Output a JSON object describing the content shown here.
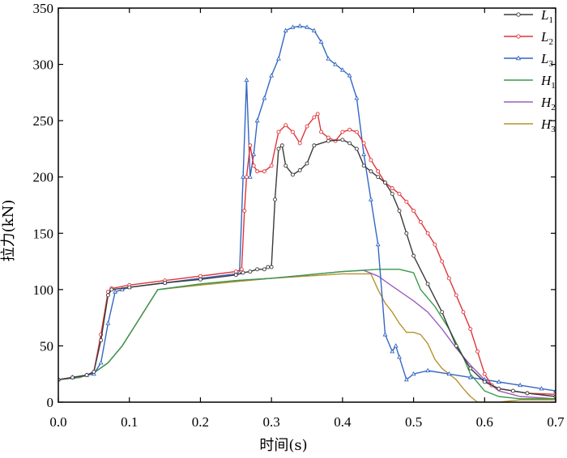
{
  "chart_data": {
    "type": "line",
    "title": "",
    "xlabel": "时间(s)",
    "ylabel": "拉力(kN)",
    "xlim": [
      0.0,
      0.7
    ],
    "ylim": [
      0,
      350
    ],
    "xticks": [
      "0.0",
      "0.1",
      "0.2",
      "0.3",
      "0.4",
      "0.5",
      "0.6",
      "0.7"
    ],
    "yticks": [
      "0",
      "50",
      "100",
      "150",
      "200",
      "250",
      "300",
      "350"
    ],
    "grid": false,
    "legend_position": "top-right",
    "series": [
      {
        "name": "L",
        "sub": "1",
        "color": "#3a3a3a",
        "marker": "circle",
        "points": [
          [
            0.0,
            20
          ],
          [
            0.02,
            22
          ],
          [
            0.04,
            24
          ],
          [
            0.05,
            27
          ],
          [
            0.06,
            55
          ],
          [
            0.07,
            95
          ],
          [
            0.075,
            100
          ],
          [
            0.1,
            102
          ],
          [
            0.15,
            106
          ],
          [
            0.2,
            109
          ],
          [
            0.25,
            113
          ],
          [
            0.26,
            115
          ],
          [
            0.27,
            116
          ],
          [
            0.28,
            118
          ],
          [
            0.29,
            118
          ],
          [
            0.295,
            120
          ],
          [
            0.3,
            120
          ],
          [
            0.305,
            180
          ],
          [
            0.31,
            225
          ],
          [
            0.315,
            228
          ],
          [
            0.32,
            210
          ],
          [
            0.33,
            202
          ],
          [
            0.34,
            206
          ],
          [
            0.35,
            212
          ],
          [
            0.36,
            228
          ],
          [
            0.38,
            232
          ],
          [
            0.4,
            233
          ],
          [
            0.41,
            230
          ],
          [
            0.42,
            225
          ],
          [
            0.43,
            210
          ],
          [
            0.44,
            205
          ],
          [
            0.45,
            200
          ],
          [
            0.46,
            195
          ],
          [
            0.47,
            185
          ],
          [
            0.48,
            170
          ],
          [
            0.49,
            150
          ],
          [
            0.5,
            130
          ],
          [
            0.52,
            105
          ],
          [
            0.54,
            80
          ],
          [
            0.56,
            50
          ],
          [
            0.58,
            30
          ],
          [
            0.6,
            18
          ],
          [
            0.62,
            12
          ],
          [
            0.64,
            10
          ],
          [
            0.66,
            8
          ],
          [
            0.7,
            5
          ]
        ]
      },
      {
        "name": "L",
        "sub": "2",
        "color": "#e0343a",
        "marker": "circle",
        "points": [
          [
            0.0,
            20
          ],
          [
            0.02,
            22
          ],
          [
            0.04,
            24
          ],
          [
            0.05,
            27
          ],
          [
            0.06,
            60
          ],
          [
            0.07,
            98
          ],
          [
            0.075,
            101
          ],
          [
            0.1,
            104
          ],
          [
            0.15,
            108
          ],
          [
            0.2,
            112
          ],
          [
            0.25,
            116
          ],
          [
            0.258,
            118
          ],
          [
            0.262,
            170
          ],
          [
            0.265,
            200
          ],
          [
            0.27,
            228
          ],
          [
            0.275,
            210
          ],
          [
            0.28,
            205
          ],
          [
            0.29,
            205
          ],
          [
            0.3,
            210
          ],
          [
            0.31,
            240
          ],
          [
            0.32,
            246
          ],
          [
            0.33,
            240
          ],
          [
            0.34,
            230
          ],
          [
            0.35,
            245
          ],
          [
            0.36,
            253
          ],
          [
            0.365,
            256
          ],
          [
            0.37,
            240
          ],
          [
            0.38,
            235
          ],
          [
            0.39,
            232
          ],
          [
            0.4,
            240
          ],
          [
            0.41,
            242
          ],
          [
            0.42,
            240
          ],
          [
            0.43,
            230
          ],
          [
            0.44,
            215
          ],
          [
            0.45,
            205
          ],
          [
            0.46,
            195
          ],
          [
            0.47,
            190
          ],
          [
            0.48,
            185
          ],
          [
            0.49,
            178
          ],
          [
            0.5,
            170
          ],
          [
            0.51,
            160
          ],
          [
            0.52,
            150
          ],
          [
            0.53,
            140
          ],
          [
            0.54,
            125
          ],
          [
            0.55,
            110
          ],
          [
            0.56,
            95
          ],
          [
            0.57,
            80
          ],
          [
            0.58,
            65
          ],
          [
            0.59,
            45
          ],
          [
            0.6,
            25
          ],
          [
            0.61,
            15
          ],
          [
            0.62,
            12
          ],
          [
            0.64,
            10
          ],
          [
            0.66,
            8
          ],
          [
            0.7,
            7
          ]
        ]
      },
      {
        "name": "L",
        "sub": "3",
        "color": "#3467c3",
        "marker": "triangle",
        "points": [
          [
            0.0,
            20
          ],
          [
            0.02,
            22
          ],
          [
            0.04,
            24
          ],
          [
            0.05,
            25
          ],
          [
            0.06,
            35
          ],
          [
            0.07,
            70
          ],
          [
            0.08,
            98
          ],
          [
            0.09,
            100
          ],
          [
            0.1,
            102
          ],
          [
            0.15,
            106
          ],
          [
            0.2,
            110
          ],
          [
            0.25,
            114
          ],
          [
            0.255,
            115
          ],
          [
            0.26,
            200
          ],
          [
            0.265,
            286
          ],
          [
            0.27,
            200
          ],
          [
            0.275,
            220
          ],
          [
            0.28,
            250
          ],
          [
            0.29,
            270
          ],
          [
            0.3,
            290
          ],
          [
            0.31,
            305
          ],
          [
            0.32,
            330
          ],
          [
            0.33,
            333
          ],
          [
            0.34,
            334
          ],
          [
            0.35,
            333
          ],
          [
            0.36,
            330
          ],
          [
            0.37,
            320
          ],
          [
            0.38,
            305
          ],
          [
            0.39,
            300
          ],
          [
            0.4,
            295
          ],
          [
            0.41,
            290
          ],
          [
            0.42,
            270
          ],
          [
            0.43,
            220
          ],
          [
            0.44,
            180
          ],
          [
            0.45,
            140
          ],
          [
            0.46,
            60
          ],
          [
            0.47,
            45
          ],
          [
            0.475,
            50
          ],
          [
            0.48,
            40
          ],
          [
            0.49,
            20
          ],
          [
            0.5,
            25
          ],
          [
            0.52,
            28
          ],
          [
            0.55,
            25
          ],
          [
            0.58,
            22
          ],
          [
            0.6,
            20
          ],
          [
            0.62,
            18
          ],
          [
            0.65,
            15
          ],
          [
            0.68,
            12
          ],
          [
            0.7,
            10
          ]
        ]
      },
      {
        "name": "H",
        "sub": "1",
        "color": "#3a9a4a",
        "marker": "none",
        "points": [
          [
            0.0,
            20
          ],
          [
            0.03,
            22
          ],
          [
            0.05,
            26
          ],
          [
            0.07,
            35
          ],
          [
            0.09,
            50
          ],
          [
            0.11,
            70
          ],
          [
            0.13,
            90
          ],
          [
            0.14,
            100
          ],
          [
            0.2,
            105
          ],
          [
            0.25,
            108
          ],
          [
            0.3,
            110
          ],
          [
            0.35,
            113
          ],
          [
            0.4,
            116
          ],
          [
            0.45,
            118
          ],
          [
            0.48,
            118
          ],
          [
            0.5,
            115
          ],
          [
            0.51,
            100
          ],
          [
            0.53,
            85
          ],
          [
            0.55,
            65
          ],
          [
            0.57,
            40
          ],
          [
            0.58,
            25
          ],
          [
            0.6,
            10
          ],
          [
            0.62,
            5
          ],
          [
            0.65,
            3
          ],
          [
            0.7,
            3
          ]
        ]
      },
      {
        "name": "H",
        "sub": "2",
        "color": "#9b5fc0",
        "marker": "none",
        "points": [
          [
            0.0,
            20
          ],
          [
            0.03,
            22
          ],
          [
            0.05,
            26
          ],
          [
            0.07,
            35
          ],
          [
            0.09,
            50
          ],
          [
            0.11,
            70
          ],
          [
            0.13,
            90
          ],
          [
            0.14,
            100
          ],
          [
            0.2,
            105
          ],
          [
            0.25,
            108
          ],
          [
            0.3,
            110
          ],
          [
            0.35,
            113
          ],
          [
            0.4,
            116
          ],
          [
            0.43,
            117
          ],
          [
            0.45,
            112
          ],
          [
            0.47,
            103
          ],
          [
            0.5,
            90
          ],
          [
            0.52,
            80
          ],
          [
            0.54,
            65
          ],
          [
            0.56,
            48
          ],
          [
            0.58,
            33
          ],
          [
            0.6,
            20
          ],
          [
            0.62,
            10
          ],
          [
            0.65,
            5
          ],
          [
            0.7,
            3
          ]
        ]
      },
      {
        "name": "H",
        "sub": "3",
        "color": "#b8922e",
        "marker": "none",
        "points": [
          [
            0.0,
            20
          ],
          [
            0.03,
            22
          ],
          [
            0.05,
            26
          ],
          [
            0.07,
            35
          ],
          [
            0.09,
            50
          ],
          [
            0.11,
            70
          ],
          [
            0.13,
            90
          ],
          [
            0.14,
            100
          ],
          [
            0.2,
            104
          ],
          [
            0.25,
            107
          ],
          [
            0.3,
            110
          ],
          [
            0.35,
            112
          ],
          [
            0.4,
            114
          ],
          [
            0.44,
            114
          ],
          [
            0.45,
            100
          ],
          [
            0.46,
            88
          ],
          [
            0.47,
            80
          ],
          [
            0.48,
            70
          ],
          [
            0.49,
            62
          ],
          [
            0.5,
            62
          ],
          [
            0.51,
            60
          ],
          [
            0.52,
            52
          ],
          [
            0.53,
            38
          ],
          [
            0.54,
            30
          ],
          [
            0.55,
            25
          ],
          [
            0.56,
            20
          ],
          [
            0.57,
            12
          ],
          [
            0.58,
            5
          ],
          [
            0.59,
            0
          ],
          [
            0.62,
            0
          ],
          [
            0.65,
            2
          ],
          [
            0.7,
            2
          ]
        ]
      }
    ]
  }
}
